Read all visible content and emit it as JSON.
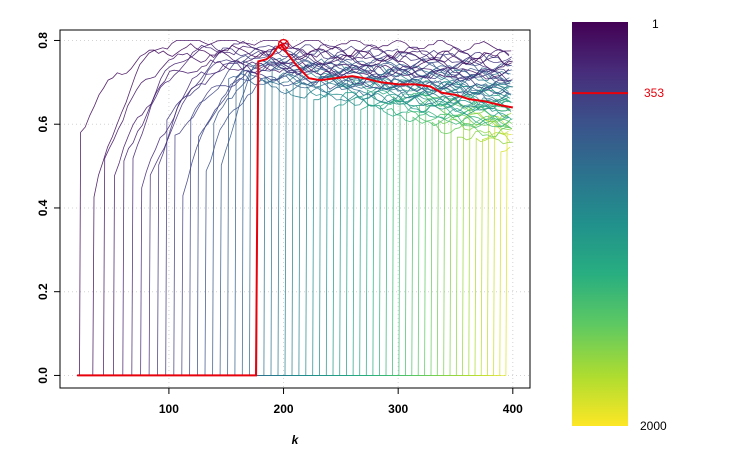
{
  "chart_data": {
    "type": "line",
    "title": "",
    "xlabel": "k",
    "ylabel": "",
    "xlim": [
      5,
      415
    ],
    "ylim": [
      -0.03,
      0.825
    ],
    "x_ticks": [
      "100",
      "200",
      "300",
      "400"
    ],
    "y_ticks": [
      "0.0",
      "0.2",
      "0.4",
      "0.6",
      "0.8"
    ],
    "grid": true,
    "series_description_count": 60,
    "k_range": [
      20,
      400
    ],
    "highlight_series": {
      "name": "353",
      "color": "#e8000b",
      "points": [
        [
          20,
          0.0
        ],
        [
          176,
          0.0
        ],
        [
          178,
          0.75
        ],
        [
          185,
          0.755
        ],
        [
          190,
          0.765
        ],
        [
          195,
          0.785
        ],
        [
          198,
          0.79
        ],
        [
          203,
          0.77
        ],
        [
          210,
          0.745
        ],
        [
          215,
          0.73
        ],
        [
          222,
          0.71
        ],
        [
          232,
          0.705
        ],
        [
          245,
          0.71
        ],
        [
          260,
          0.715
        ],
        [
          270,
          0.71
        ],
        [
          285,
          0.7
        ],
        [
          300,
          0.695
        ],
        [
          315,
          0.695
        ],
        [
          328,
          0.69
        ],
        [
          338,
          0.675
        ],
        [
          350,
          0.67
        ],
        [
          362,
          0.66
        ],
        [
          375,
          0.655
        ],
        [
          390,
          0.645
        ],
        [
          400,
          0.64
        ]
      ],
      "max_marker": [
        200,
        0.79
      ]
    },
    "colorbar": {
      "palette": "viridis",
      "min_label": "1",
      "max_label": "2000",
      "highlight_label": "353",
      "highlight_value": 353,
      "range": [
        1,
        2000
      ],
      "stops": [
        "#440154",
        "#472d7b",
        "#3b528b",
        "#2c728e",
        "#21918c",
        "#28ae80",
        "#5ec962",
        "#addc30",
        "#fde725"
      ]
    }
  }
}
